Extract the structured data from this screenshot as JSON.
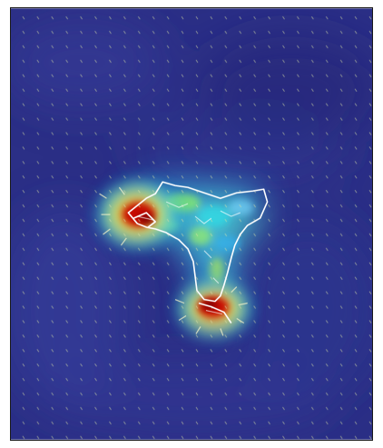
{
  "image": {
    "colormap": "jet",
    "background_color": "#2b2f86",
    "arrow_color": "#d8e2a8",
    "outline_color": "#ffffff",
    "hotspot_count": 2
  }
}
